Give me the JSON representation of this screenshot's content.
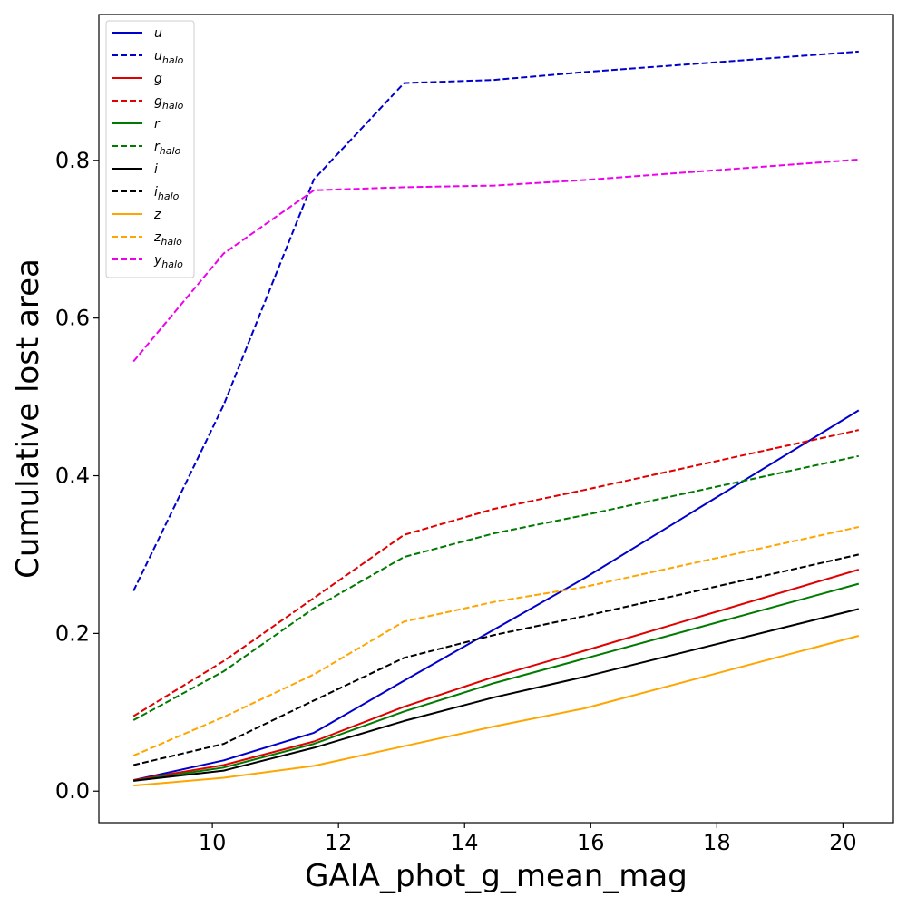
{
  "chart_data": {
    "type": "line",
    "title": "",
    "xlabel": "GAIA_phot_g_mean_mag",
    "ylabel": "Cumulative lost area",
    "xlim": [
      8.2,
      20.8
    ],
    "ylim": [
      -0.04,
      0.985
    ],
    "xticks": [
      10,
      12,
      14,
      16,
      18,
      20
    ],
    "yticks": [
      0.0,
      0.2,
      0.4,
      0.6,
      0.8
    ],
    "xtick_labels": [
      "10",
      "12",
      "14",
      "16",
      "18",
      "20"
    ],
    "ytick_labels": [
      "0.0",
      "0.2",
      "0.4",
      "0.6",
      "0.8"
    ],
    "grid": false,
    "legend_position": "top-left",
    "x": [
      8.75,
      10.18,
      11.61,
      13.04,
      14.47,
      15.9,
      20.25
    ],
    "series": [
      {
        "name": "u",
        "base": "u",
        "sub": "",
        "color": "#0000cc",
        "style": "solid",
        "values": [
          0.014,
          0.039,
          0.074,
          0.14,
          0.205,
          0.27,
          0.483
        ]
      },
      {
        "name": "u_halo",
        "base": "u",
        "sub": "halo",
        "color": "#0000cc",
        "style": "dashed",
        "values": [
          0.254,
          0.49,
          0.776,
          0.898,
          0.902,
          0.912,
          0.938
        ]
      },
      {
        "name": "g",
        "base": "g",
        "sub": "",
        "color": "#e00000",
        "style": "solid",
        "values": [
          0.014,
          0.033,
          0.063,
          0.107,
          0.145,
          0.178,
          0.281
        ]
      },
      {
        "name": "g_halo",
        "base": "g",
        "sub": "halo",
        "color": "#e00000",
        "style": "dashed",
        "values": [
          0.095,
          0.165,
          0.245,
          0.325,
          0.358,
          0.382,
          0.458
        ]
      },
      {
        "name": "r",
        "base": "r",
        "sub": "",
        "color": "#007a00",
        "style": "solid",
        "values": [
          0.013,
          0.03,
          0.06,
          0.101,
          0.137,
          0.168,
          0.263
        ]
      },
      {
        "name": "r_halo",
        "base": "r",
        "sub": "halo",
        "color": "#007a00",
        "style": "dashed",
        "values": [
          0.09,
          0.152,
          0.232,
          0.297,
          0.327,
          0.35,
          0.425
        ]
      },
      {
        "name": "i",
        "base": "i",
        "sub": "",
        "color": "#000000",
        "style": "solid",
        "values": [
          0.013,
          0.026,
          0.055,
          0.089,
          0.119,
          0.145,
          0.231
        ]
      },
      {
        "name": "i_halo",
        "base": "i",
        "sub": "halo",
        "color": "#000000",
        "style": "dashed",
        "values": [
          0.033,
          0.06,
          0.115,
          0.169,
          0.198,
          0.222,
          0.3
        ]
      },
      {
        "name": "z",
        "base": "z",
        "sub": "",
        "color": "#ffa500",
        "style": "solid",
        "values": [
          0.007,
          0.017,
          0.032,
          0.057,
          0.082,
          0.105,
          0.197
        ]
      },
      {
        "name": "z_halo",
        "base": "z",
        "sub": "halo",
        "color": "#ffa500",
        "style": "dashed",
        "values": [
          0.045,
          0.094,
          0.148,
          0.215,
          0.24,
          0.259,
          0.335
        ]
      },
      {
        "name": "y_halo",
        "base": "y",
        "sub": "halo",
        "color": "#ee00ee",
        "style": "dashed",
        "values": [
          0.545,
          0.682,
          0.762,
          0.766,
          0.768,
          0.775,
          0.801
        ]
      }
    ]
  }
}
